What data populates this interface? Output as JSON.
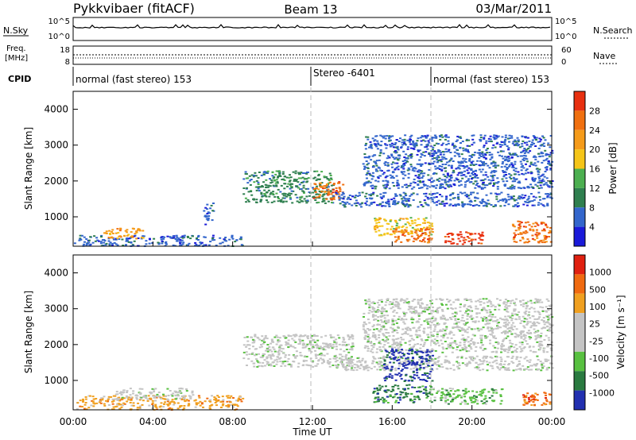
{
  "header": {
    "station": "Pykkvibaer (fitACF)",
    "beam": "Beam 13",
    "date": "03/Mar/2011"
  },
  "panels": {
    "nsky": {
      "label": "N.Sky",
      "tick_top": "10^5",
      "tick_bottom": "10^0"
    },
    "nsearch": {
      "label": "N.Search",
      "tick_top": "10^5",
      "tick_bottom": "10^0"
    },
    "freq": {
      "label": "Freq.",
      "unit": "[MHz]",
      "tick_top": "18",
      "tick_bottom": "8"
    },
    "nave": {
      "label": "Nave",
      "tick_top": "60",
      "tick_bottom": "0"
    },
    "cpid": {
      "label": "CPID",
      "segments": [
        {
          "text": "normal (fast stereo) 153",
          "start": 0
        },
        {
          "text": "Stereo -6401",
          "start": 12
        },
        {
          "text": "normal (fast stereo) 153",
          "start": 18
        }
      ]
    }
  },
  "colors": {
    "power": [
      "#1a1ad9",
      "#3366cc",
      "#2f7f4f",
      "#4caf50",
      "#f5c518",
      "#f59b1a",
      "#f07010",
      "#e83010"
    ],
    "velocity": [
      "#2230b0",
      "#2a7a40",
      "#58c040",
      "#c4c4c4",
      "#c4c4c4",
      "#f0a020",
      "#f06a10",
      "#e02010"
    ]
  },
  "chart_data": [
    {
      "type": "heatmap",
      "title": "Power",
      "ylabel": "Slant Range [km]",
      "xlabel": "Time UT",
      "xlim": [
        0,
        24
      ],
      "ylim": [
        180,
        4500
      ],
      "xticks": [
        "00:00",
        "04:00",
        "08:00",
        "12:00",
        "16:00",
        "20:00",
        "00:00"
      ],
      "yticks": [
        1000,
        2000,
        3000,
        4000
      ],
      "colorbar": {
        "label": "Power [dB]",
        "ticks": [
          "28",
          "24",
          "20",
          "16",
          "12",
          "8",
          "4"
        ]
      },
      "regions": [
        {
          "t0": 0.0,
          "t1": 8.5,
          "r0": 200,
          "r1": 500,
          "level": 1
        },
        {
          "t0": 1.5,
          "t1": 3.5,
          "r0": 400,
          "r1": 700,
          "level": 5
        },
        {
          "t0": 6.5,
          "t1": 7.0,
          "r0": 800,
          "r1": 1400,
          "level": 1
        },
        {
          "t0": 8.5,
          "t1": 13.0,
          "r0": 1400,
          "r1": 2300,
          "level": 2
        },
        {
          "t0": 12.0,
          "t1": 13.5,
          "r0": 1500,
          "r1": 2000,
          "level": 6
        },
        {
          "t0": 13.0,
          "t1": 24.0,
          "r0": 1300,
          "r1": 1700,
          "level": 1
        },
        {
          "t0": 14.5,
          "t1": 24.0,
          "r0": 1800,
          "r1": 3300,
          "level": 1
        },
        {
          "t0": 15.0,
          "t1": 18.0,
          "r0": 500,
          "r1": 1000,
          "level": 4
        },
        {
          "t0": 16.0,
          "t1": 18.0,
          "r0": 300,
          "r1": 700,
          "level": 6
        },
        {
          "t0": 18.5,
          "t1": 20.5,
          "r0": 250,
          "r1": 600,
          "level": 7
        },
        {
          "t0": 22.0,
          "t1": 24.0,
          "r0": 300,
          "r1": 900,
          "level": 6
        }
      ]
    },
    {
      "type": "heatmap",
      "title": "Velocity",
      "ylabel": "Slant Range [km]",
      "xlabel": "Time UT",
      "xlim": [
        0,
        24
      ],
      "ylim": [
        180,
        4500
      ],
      "xticks": [
        "00:00",
        "04:00",
        "08:00",
        "12:00",
        "16:00",
        "20:00",
        "00:00"
      ],
      "yticks": [
        1000,
        2000,
        3000,
        4000
      ],
      "colorbar": {
        "label": "Velocity [m s⁻¹]",
        "ticks": [
          "1000",
          "500",
          "100",
          "25",
          "-25",
          "-100",
          "-500",
          "-1000"
        ]
      },
      "regions": [
        {
          "t0": 0.0,
          "t1": 8.5,
          "r0": 200,
          "r1": 600,
          "level": 5
        },
        {
          "t0": 2.0,
          "t1": 6.0,
          "r0": 500,
          "r1": 800,
          "level": 3
        },
        {
          "t0": 8.5,
          "t1": 14.0,
          "r0": 1400,
          "r1": 2300,
          "level": 3
        },
        {
          "t0": 13.0,
          "t1": 24.0,
          "r0": 1300,
          "r1": 1700,
          "level": 3
        },
        {
          "t0": 14.5,
          "t1": 24.0,
          "r0": 1800,
          "r1": 3300,
          "level": 3
        },
        {
          "t0": 15.5,
          "t1": 18.0,
          "r0": 1000,
          "r1": 1900,
          "level": 0
        },
        {
          "t0": 15.0,
          "t1": 18.0,
          "r0": 400,
          "r1": 900,
          "level": 1
        },
        {
          "t0": 18.0,
          "t1": 21.5,
          "r0": 350,
          "r1": 800,
          "level": 2
        },
        {
          "t0": 22.5,
          "t1": 24.0,
          "r0": 300,
          "r1": 700,
          "level": 6
        }
      ]
    }
  ]
}
